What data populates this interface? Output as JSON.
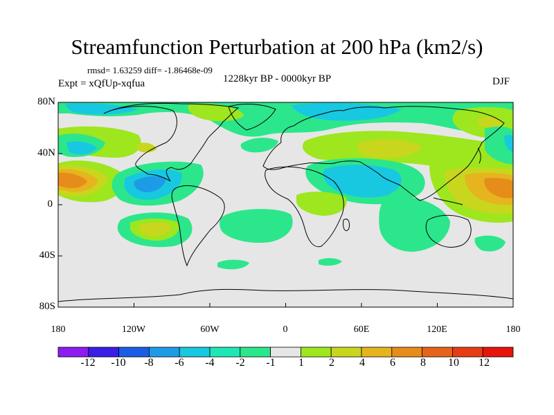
{
  "title": "Streamfunction Perturbation at 200 hPa (km2/s)",
  "stats": "rmsd= 1.63259 diff= -1.86468e-09",
  "period": "1228kyr BP - 0000kyr BP",
  "experiment": "Expt = xQfUp-xqfua",
  "season": "DJF",
  "lat_ticks": [
    "80N",
    "40N",
    "0",
    "40S",
    "80S"
  ],
  "lon_ticks": [
    "180",
    "120W",
    "60W",
    "0",
    "60E",
    "120E",
    "180"
  ],
  "colorbar": {
    "labels": [
      "-12",
      "-10",
      "-8",
      "-6",
      "-4",
      "-2",
      "-1",
      "1",
      "2",
      "4",
      "6",
      "8",
      "10",
      "12"
    ],
    "colors": [
      "#8c1cf0",
      "#3a1ee6",
      "#1a5ee6",
      "#1e9be6",
      "#18c8e0",
      "#1ee6b4",
      "#2ce68c",
      "#e6e6e6",
      "#9ee61e",
      "#c8d61e",
      "#e6b41e",
      "#e68c1a",
      "#e6641a",
      "#e63c14",
      "#e6140a"
    ]
  },
  "map_colors": {
    "background": "#e6e6e6",
    "pos1": "#9ee61e",
    "pos2": "#c8d61e",
    "pos3": "#e6b41e",
    "pos4": "#e68c1a",
    "pos5": "#e6641a",
    "neg1": "#2ce68c",
    "neg2": "#18c8e0",
    "neg3": "#1e9be6",
    "coast": "#000000"
  }
}
